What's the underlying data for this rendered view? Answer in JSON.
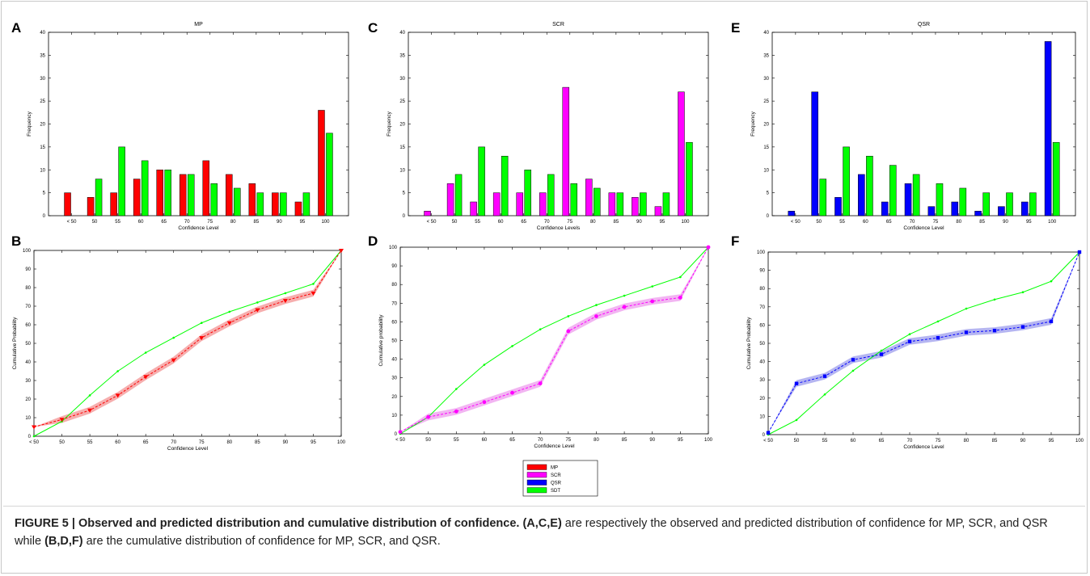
{
  "caption": {
    "label": "FIGURE 5 | Observed and predicted distribution and cumulative distribution of confidence.",
    "p1": "(A,C,E)",
    "t1": " are respectively the observed and predicted distribution of confidence for MP, SCR, and QSR while ",
    "p2": "(B,D,F)",
    "t2": " are the cumulative distribution of confidence for MP, SCR, and QSR."
  },
  "legend": {
    "entries": [
      {
        "name": "MP",
        "color": "#ff0000"
      },
      {
        "name": "SCR",
        "color": "#ff00ff"
      },
      {
        "name": "QSR",
        "color": "#0000ff"
      },
      {
        "name": "SDT",
        "color": "#00ff00"
      }
    ]
  },
  "chart_data": [
    {
      "panel": "A",
      "type": "bar",
      "title": "MP",
      "xlabel": "Confidence Level",
      "ylabel": "Frequency",
      "ylim": [
        0,
        40
      ],
      "yticks": [
        0,
        5,
        10,
        15,
        20,
        25,
        30,
        35,
        40
      ],
      "categories": [
        "< 50",
        "50",
        "55",
        "60",
        "65",
        "70",
        "75",
        "80",
        "85",
        "90",
        "95",
        "100"
      ],
      "series": [
        {
          "name": "MP",
          "color": "#ff0000",
          "values": [
            5,
            4,
            5,
            8,
            10,
            9,
            12,
            9,
            7,
            5,
            3,
            23
          ]
        },
        {
          "name": "SDT",
          "color": "#00ff00",
          "values": [
            0,
            8,
            15,
            12,
            10,
            9,
            7,
            6,
            5,
            5,
            5,
            18
          ]
        }
      ]
    },
    {
      "panel": "C",
      "type": "bar",
      "title": "SCR",
      "xlabel": "Confidence Levels",
      "ylabel": "Frequency",
      "ylim": [
        0,
        40
      ],
      "yticks": [
        0,
        5,
        10,
        15,
        20,
        25,
        30,
        35,
        40
      ],
      "categories": [
        "< 50",
        "50",
        "55",
        "60",
        "65",
        "70",
        "75",
        "80",
        "85",
        "90",
        "95",
        "100"
      ],
      "series": [
        {
          "name": "SCR",
          "color": "#ff00ff",
          "values": [
            1,
            7,
            3,
            5,
            5,
            5,
            28,
            8,
            5,
            4,
            2,
            27
          ]
        },
        {
          "name": "SDT",
          "color": "#00ff00",
          "values": [
            0,
            9,
            15,
            13,
            10,
            9,
            7,
            6,
            5,
            5,
            5,
            16
          ]
        }
      ]
    },
    {
      "panel": "E",
      "type": "bar",
      "title": "QSR",
      "xlabel": "Confidence Level",
      "ylabel": "Frequency",
      "ylim": [
        0,
        40
      ],
      "yticks": [
        0,
        5,
        10,
        15,
        20,
        25,
        30,
        35,
        40
      ],
      "categories": [
        "< 50",
        "50",
        "55",
        "60",
        "65",
        "70",
        "75",
        "80",
        "85",
        "90",
        "95",
        "100"
      ],
      "series": [
        {
          "name": "QSR",
          "color": "#0000ff",
          "values": [
            1,
            27,
            4,
            9,
            3,
            7,
            2,
            3,
            1,
            2,
            3,
            38
          ]
        },
        {
          "name": "SDT",
          "color": "#00ff00",
          "values": [
            0,
            8,
            15,
            13,
            11,
            9,
            7,
            6,
            5,
            5,
            5,
            16
          ]
        }
      ]
    },
    {
      "panel": "B",
      "type": "line",
      "title": "",
      "xlabel": "Confidence Level",
      "ylabel": "Cumulative Probability",
      "ylim": [
        0,
        100
      ],
      "yticks": [
        0,
        10,
        20,
        30,
        40,
        50,
        60,
        70,
        80,
        90,
        100
      ],
      "categories": [
        "< 50",
        "50",
        "55",
        "60",
        "65",
        "70",
        "75",
        "80",
        "85",
        "90",
        "95",
        "100"
      ],
      "marker": "triangle",
      "series": [
        {
          "name": "MP",
          "color": "#ff0000",
          "band": "#f4a0a0",
          "values": [
            5,
            9,
            14,
            22,
            32,
            41,
            53,
            61,
            68,
            73,
            77,
            100
          ]
        },
        {
          "name": "SDT",
          "color": "#00ff00",
          "values": [
            0,
            8,
            22,
            35,
            45,
            53,
            61,
            67,
            72,
            77,
            82,
            100
          ]
        }
      ]
    },
    {
      "panel": "D",
      "type": "line",
      "title": "",
      "xlabel": "Confidence Level",
      "ylabel": "Cumulative probability",
      "ylim": [
        0,
        100
      ],
      "yticks": [
        0,
        10,
        20,
        30,
        40,
        50,
        60,
        70,
        80,
        90,
        100
      ],
      "categories": [
        "< 50",
        "50",
        "55",
        "60",
        "65",
        "70",
        "75",
        "80",
        "85",
        "90",
        "95",
        "100"
      ],
      "marker": "circle",
      "series": [
        {
          "name": "SCR",
          "color": "#ff00ff",
          "band": "#f0a8f0",
          "values": [
            1,
            9,
            12,
            17,
            22,
            27,
            55,
            63,
            68,
            71,
            73,
            100
          ]
        },
        {
          "name": "SDT",
          "color": "#00ff00",
          "values": [
            0,
            9,
            24,
            37,
            47,
            56,
            63,
            69,
            74,
            79,
            84,
            100
          ]
        }
      ]
    },
    {
      "panel": "F",
      "type": "line",
      "title": "",
      "xlabel": "Confidence Level",
      "ylabel": "Cumulative Probability",
      "ylim": [
        0,
        100
      ],
      "yticks": [
        0,
        10,
        20,
        30,
        40,
        50,
        60,
        70,
        80,
        90,
        100
      ],
      "categories": [
        "< 50",
        "50",
        "55",
        "60",
        "65",
        "70",
        "75",
        "80",
        "85",
        "90",
        "95",
        "100"
      ],
      "marker": "square",
      "series": [
        {
          "name": "QSR",
          "color": "#0000ff",
          "band": "#a8a8ee",
          "values": [
            1,
            28,
            32,
            41,
            44,
            51,
            53,
            56,
            57,
            59,
            62,
            100
          ]
        },
        {
          "name": "SDT",
          "color": "#00ff00",
          "values": [
            0,
            8,
            22,
            35,
            46,
            55,
            62,
            69,
            74,
            78,
            84,
            100
          ]
        }
      ]
    }
  ]
}
